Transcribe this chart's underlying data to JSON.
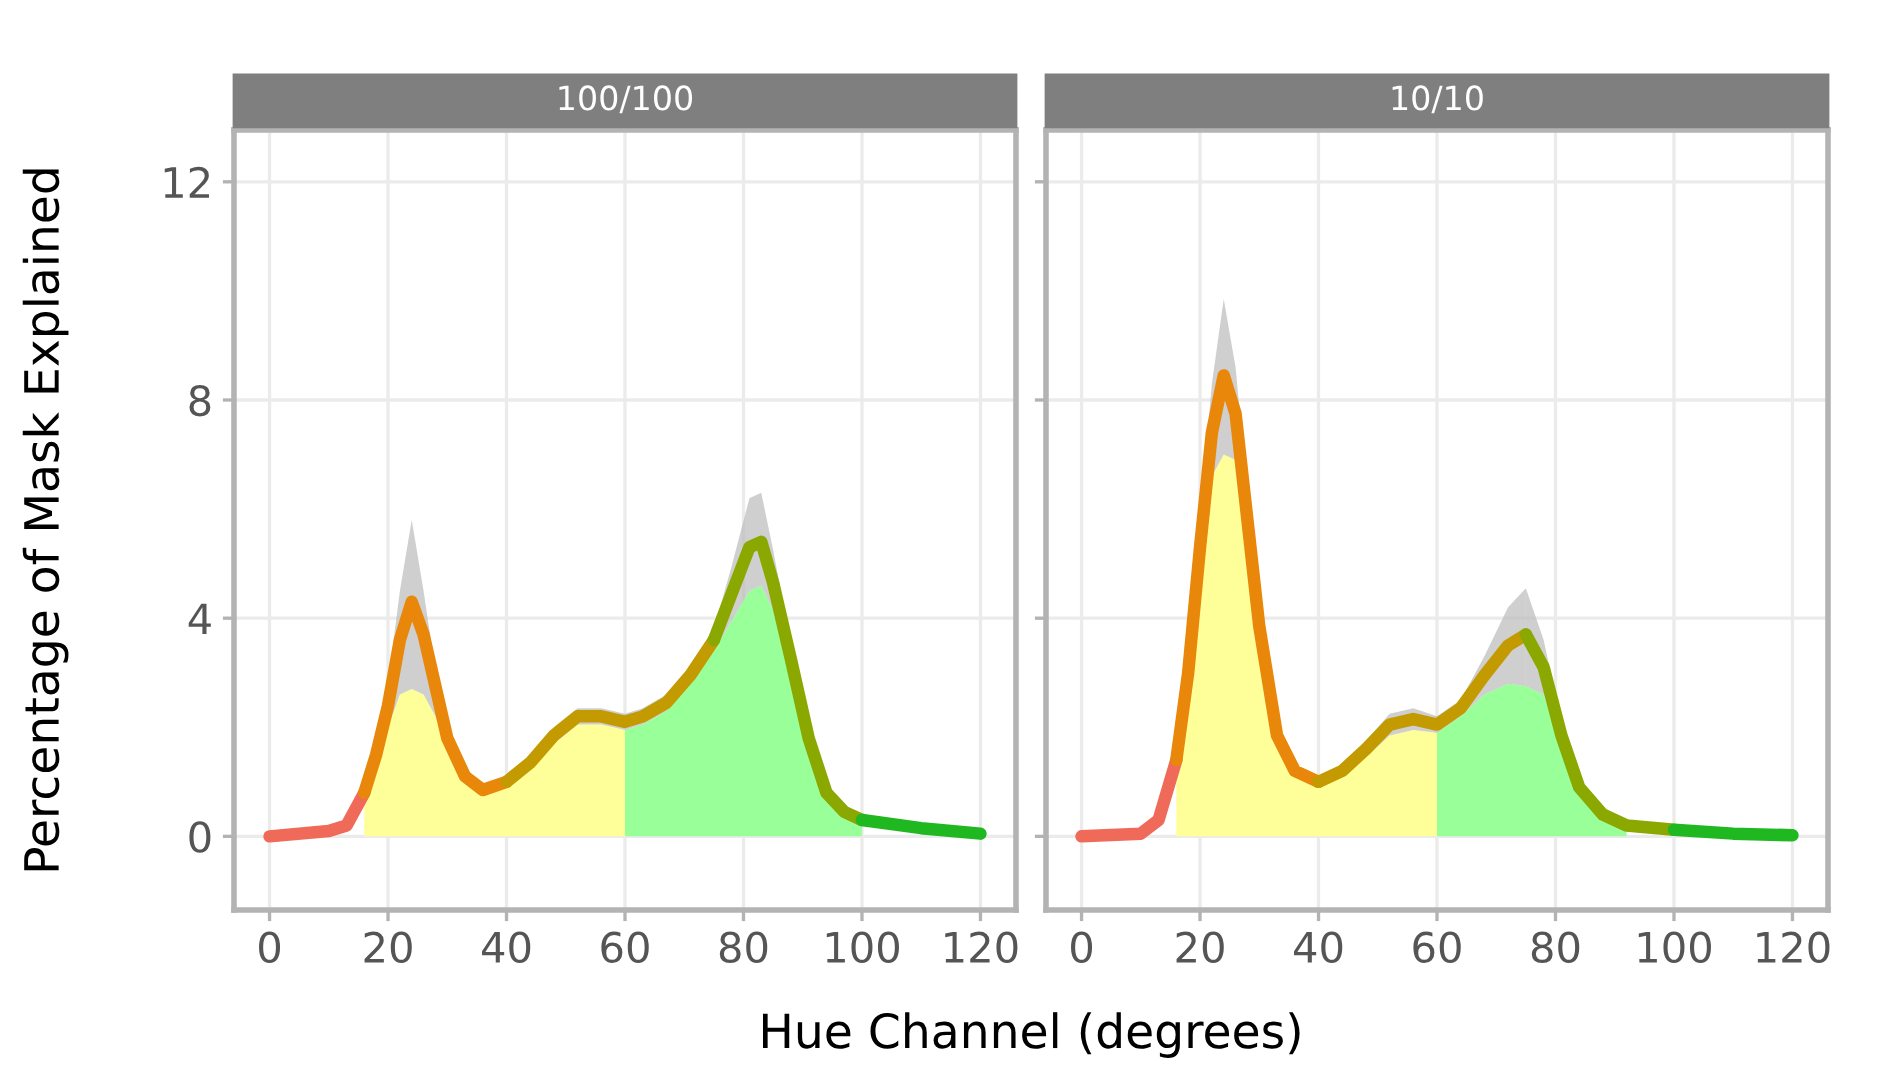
{
  "chart_data": [
    {
      "type": "line",
      "title": "100/100",
      "xlabel": "Hue Channel (degrees)",
      "ylabel": "Percentage of Mask Explained",
      "xlim": [
        -6,
        126
      ],
      "ylim": [
        -1.35,
        12.95
      ],
      "xticks": [
        0,
        20,
        40,
        60,
        80,
        100,
        120
      ],
      "yticks": [
        0,
        4,
        8,
        12
      ],
      "grid": true,
      "series": [
        {
          "type": "area",
          "color": "#ffff99",
          "x": [
            16,
            18,
            20,
            22,
            24,
            26,
            28,
            30,
            33,
            36,
            40,
            44,
            48,
            52,
            56,
            60
          ],
          "values": [
            0.65,
            1.3,
            2.0,
            2.6,
            2.7,
            2.6,
            2.2,
            1.6,
            1.0,
            0.75,
            0.9,
            1.25,
            1.7,
            2.05,
            2.05,
            1.95
          ]
        },
        {
          "type": "area",
          "color": "#99ff99",
          "x": [
            60,
            63,
            67,
            71,
            75,
            78,
            81,
            83,
            85,
            88,
            91,
            94,
            97,
            100
          ],
          "values": [
            1.95,
            2.05,
            2.3,
            2.8,
            3.4,
            3.95,
            4.5,
            4.6,
            4.15,
            2.95,
            1.65,
            0.7,
            0.4,
            0.25
          ]
        },
        {
          "color": "#f06a5a",
          "x": [
            0,
            10,
            13,
            16
          ],
          "values": [
            0,
            0.1,
            0.2,
            0.8
          ]
        },
        {
          "color": "#e8870a",
          "x": [
            16,
            18,
            20,
            22,
            24,
            26,
            28,
            30,
            33,
            36,
            40
          ],
          "values": [
            0.8,
            1.5,
            2.4,
            3.6,
            4.3,
            3.7,
            2.75,
            1.8,
            1.1,
            0.85,
            1.0
          ],
          "lower": [
            0.65,
            1.3,
            2.0,
            2.6,
            2.7,
            2.6,
            2.2,
            1.6,
            1.0,
            0.75,
            0.9
          ],
          "upper": [
            0.95,
            1.7,
            2.8,
            4.5,
            5.8,
            4.5,
            3.05,
            1.95,
            1.2,
            0.95,
            1.1
          ]
        },
        {
          "color": "#c39a00",
          "x": [
            40,
            44,
            48,
            52,
            56,
            60,
            63,
            67,
            71,
            75
          ],
          "values": [
            1.0,
            1.35,
            1.85,
            2.2,
            2.2,
            2.1,
            2.2,
            2.45,
            2.95,
            3.6
          ],
          "lower": [
            0.9,
            1.25,
            1.7,
            2.05,
            2.05,
            1.95,
            2.05,
            2.3,
            2.8,
            3.4
          ],
          "upper": [
            1.1,
            1.45,
            2.0,
            2.35,
            2.35,
            2.25,
            2.35,
            2.6,
            3.1,
            3.8
          ]
        },
        {
          "color": "#8aa800",
          "x": [
            75,
            78,
            81,
            83,
            85,
            88,
            91,
            94,
            97,
            100
          ],
          "values": [
            3.6,
            4.45,
            5.3,
            5.4,
            4.65,
            3.25,
            1.8,
            0.8,
            0.45,
            0.3
          ],
          "lower": [
            3.4,
            3.95,
            4.5,
            4.6,
            4.15,
            2.95,
            1.65,
            0.7,
            0.4,
            0.25
          ],
          "upper": [
            3.8,
            4.95,
            6.2,
            6.3,
            5.25,
            3.55,
            1.95,
            0.9,
            0.5,
            0.35
          ]
        },
        {
          "color": "#20b820",
          "x": [
            100,
            110,
            120
          ],
          "values": [
            0.3,
            0.15,
            0.05
          ]
        }
      ]
    },
    {
      "type": "line",
      "title": "10/10",
      "xlim": [
        -6,
        126
      ],
      "ylim": [
        -1.35,
        12.95
      ],
      "xticks": [
        0,
        20,
        40,
        60,
        80,
        100,
        120
      ],
      "yticks": [
        0,
        4,
        8,
        12
      ],
      "grid": true,
      "tick_labels": "x",
      "series": [
        {
          "type": "area",
          "color": "#ffff99",
          "x": [
            16,
            18,
            20,
            22,
            24,
            26,
            28,
            30,
            33,
            36,
            40,
            44,
            48,
            52,
            56,
            60
          ],
          "values": [
            1.2,
            2.7,
            4.8,
            6.6,
            7.0,
            6.9,
            5.3,
            3.5,
            1.7,
            1.1,
            0.9,
            1.1,
            1.45,
            1.85,
            1.95,
            1.9
          ]
        },
        {
          "type": "area",
          "color": "#99ff99",
          "x": [
            60,
            64,
            68,
            72,
            75,
            78,
            81,
            84,
            88,
            92
          ],
          "values": [
            1.9,
            2.2,
            2.6,
            2.8,
            2.75,
            2.6,
            1.6,
            0.8,
            0.35,
            0.15
          ]
        },
        {
          "color": "#f06a5a",
          "x": [
            0,
            10,
            13,
            16
          ],
          "values": [
            0,
            0.05,
            0.3,
            1.4
          ]
        },
        {
          "color": "#e8870a",
          "x": [
            16,
            18,
            20,
            22,
            24,
            26,
            28,
            30,
            33,
            36,
            40
          ],
          "values": [
            1.4,
            3.0,
            5.3,
            7.4,
            8.45,
            7.75,
            5.8,
            3.85,
            1.85,
            1.2,
            1.0
          ],
          "lower": [
            1.2,
            2.7,
            4.8,
            6.6,
            7.0,
            6.9,
            5.3,
            3.5,
            1.7,
            1.1,
            0.9
          ],
          "upper": [
            1.6,
            3.3,
            5.8,
            8.3,
            9.85,
            8.6,
            6.3,
            4.2,
            2.0,
            1.3,
            1.1
          ]
        },
        {
          "color": "#c39a00",
          "x": [
            40,
            44,
            48,
            52,
            56,
            60,
            64,
            68,
            72,
            75
          ],
          "values": [
            1.0,
            1.2,
            1.6,
            2.05,
            2.15,
            2.05,
            2.35,
            2.95,
            3.5,
            3.7
          ],
          "lower": [
            0.9,
            1.1,
            1.45,
            1.85,
            1.95,
            1.9,
            2.2,
            2.6,
            2.8,
            2.75
          ],
          "upper": [
            1.1,
            1.3,
            1.75,
            2.25,
            2.35,
            2.2,
            2.5,
            3.3,
            4.2,
            4.55
          ]
        },
        {
          "color": "#8aa800",
          "x": [
            75,
            78,
            81,
            84,
            88,
            92,
            100
          ],
          "values": [
            3.7,
            3.1,
            1.85,
            0.9,
            0.4,
            0.2,
            0.12
          ],
          "lower": [
            2.75,
            2.6,
            1.6,
            0.8,
            0.35,
            0.15,
            0.08
          ],
          "upper": [
            4.55,
            3.6,
            2.1,
            1.0,
            0.45,
            0.25,
            0.16
          ]
        },
        {
          "color": "#20b820",
          "x": [
            100,
            110,
            120
          ],
          "values": [
            0.12,
            0.05,
            0.02
          ]
        }
      ]
    }
  ]
}
